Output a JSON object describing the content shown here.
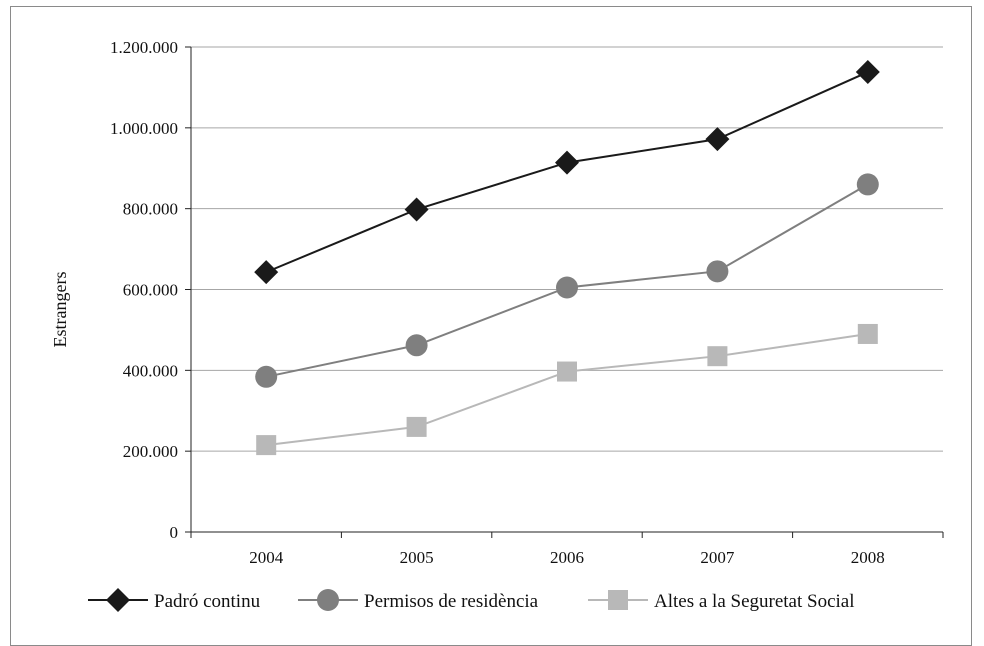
{
  "chart_data": {
    "type": "line",
    "ylabel": "Estrangers",
    "xlabel": "",
    "categories": [
      "2004",
      "2005",
      "2006",
      "2007",
      "2008"
    ],
    "ylim": [
      0,
      1200000
    ],
    "yticks": [
      0,
      200000,
      400000,
      600000,
      800000,
      1000000,
      1200000
    ],
    "ytick_labels": [
      "0",
      "200.000",
      "400.000",
      "600.000",
      "800.000",
      "1.000.000",
      "1.200.000"
    ],
    "grid": true,
    "legend_position": "bottom",
    "series": [
      {
        "name": "Padró continu",
        "values": [
          643000,
          798000,
          914000,
          972000,
          1138000
        ],
        "color": "#1a1a1a",
        "marker": "diamond"
      },
      {
        "name": "Permisos de residència",
        "values": [
          384000,
          462000,
          605000,
          645000,
          860000
        ],
        "color": "#7f7f7f",
        "marker": "circle"
      },
      {
        "name": "Altes a la Seguretat Social",
        "values": [
          215000,
          260000,
          397000,
          435000,
          490000
        ],
        "color": "#b8b8b8",
        "marker": "square"
      }
    ]
  }
}
